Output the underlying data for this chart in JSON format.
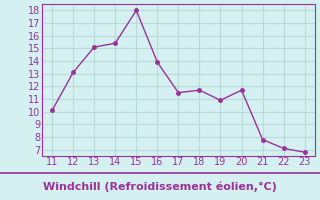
{
  "x": [
    11,
    12,
    13,
    14,
    15,
    16,
    17,
    18,
    19,
    20,
    21,
    22,
    23
  ],
  "y": [
    10.1,
    13.1,
    15.1,
    15.4,
    18.0,
    13.9,
    11.5,
    11.7,
    10.9,
    11.7,
    7.8,
    7.1,
    6.8
  ],
  "line_color": "#993399",
  "marker": "o",
  "marker_size": 2.5,
  "background_color": "#d4f0f0",
  "grid_color": "#b8dada",
  "xlabel": "Windchill (Refroidissement éolien,°C)",
  "xlabel_color": "#993399",
  "xlabel_fontsize": 8,
  "xlim": [
    10.5,
    23.5
  ],
  "ylim": [
    6.5,
    18.5
  ],
  "xticks": [
    11,
    12,
    13,
    14,
    15,
    16,
    17,
    18,
    19,
    20,
    21,
    22,
    23
  ],
  "yticks": [
    7,
    8,
    9,
    10,
    11,
    12,
    13,
    14,
    15,
    16,
    17,
    18
  ],
  "tick_fontsize": 7,
  "tick_color": "#993399",
  "spine_color": "#993399",
  "line_width": 1.0,
  "bottom_line_color": "#993399"
}
